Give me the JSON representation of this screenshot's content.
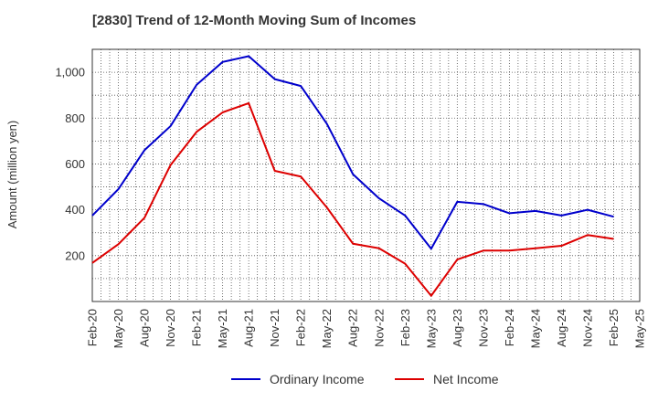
{
  "chart_data": {
    "type": "line",
    "title": "[2830]  Trend of 12-Month Moving Sum of Incomes",
    "xlabel": "",
    "ylabel": "Amount (million yen)",
    "ylim": [
      0,
      1100
    ],
    "yticks": [
      200,
      400,
      600,
      800,
      1000
    ],
    "ytick_labels": [
      "200",
      "400",
      "600",
      "800",
      "1,000"
    ],
    "grid": true,
    "legend_position": "bottom",
    "x_tick_labels": [
      "Feb-20",
      "May-20",
      "Aug-20",
      "Nov-20",
      "Feb-21",
      "May-21",
      "Aug-21",
      "Nov-21",
      "Feb-22",
      "May-22",
      "Aug-22",
      "Nov-22",
      "Feb-23",
      "May-23",
      "Aug-23",
      "Nov-23",
      "Feb-24",
      "May-24",
      "Aug-24",
      "Nov-24",
      "Feb-25",
      "May-25"
    ],
    "categories": [
      "Feb-20",
      "May-20",
      "Aug-20",
      "Nov-20",
      "Feb-21",
      "May-21",
      "Aug-21",
      "Nov-21",
      "Feb-22",
      "May-22",
      "Aug-22",
      "Nov-22",
      "Feb-23",
      "May-23",
      "Aug-23",
      "Nov-23",
      "Feb-24",
      "May-24",
      "Aug-24",
      "Nov-24",
      "Feb-25"
    ],
    "series": [
      {
        "name": "Ordinary Income",
        "color": "#0000cc",
        "values": [
          375,
          490,
          660,
          765,
          945,
          1045,
          1070,
          970,
          940,
          775,
          555,
          450,
          375,
          230,
          435,
          425,
          385,
          395,
          375,
          400,
          370
        ]
      },
      {
        "name": "Net Income",
        "color": "#dd0000",
        "values": [
          168,
          250,
          365,
          595,
          740,
          825,
          865,
          570,
          545,
          410,
          252,
          232,
          165,
          25,
          183,
          222,
          222,
          232,
          243,
          290,
          273
        ]
      }
    ]
  }
}
